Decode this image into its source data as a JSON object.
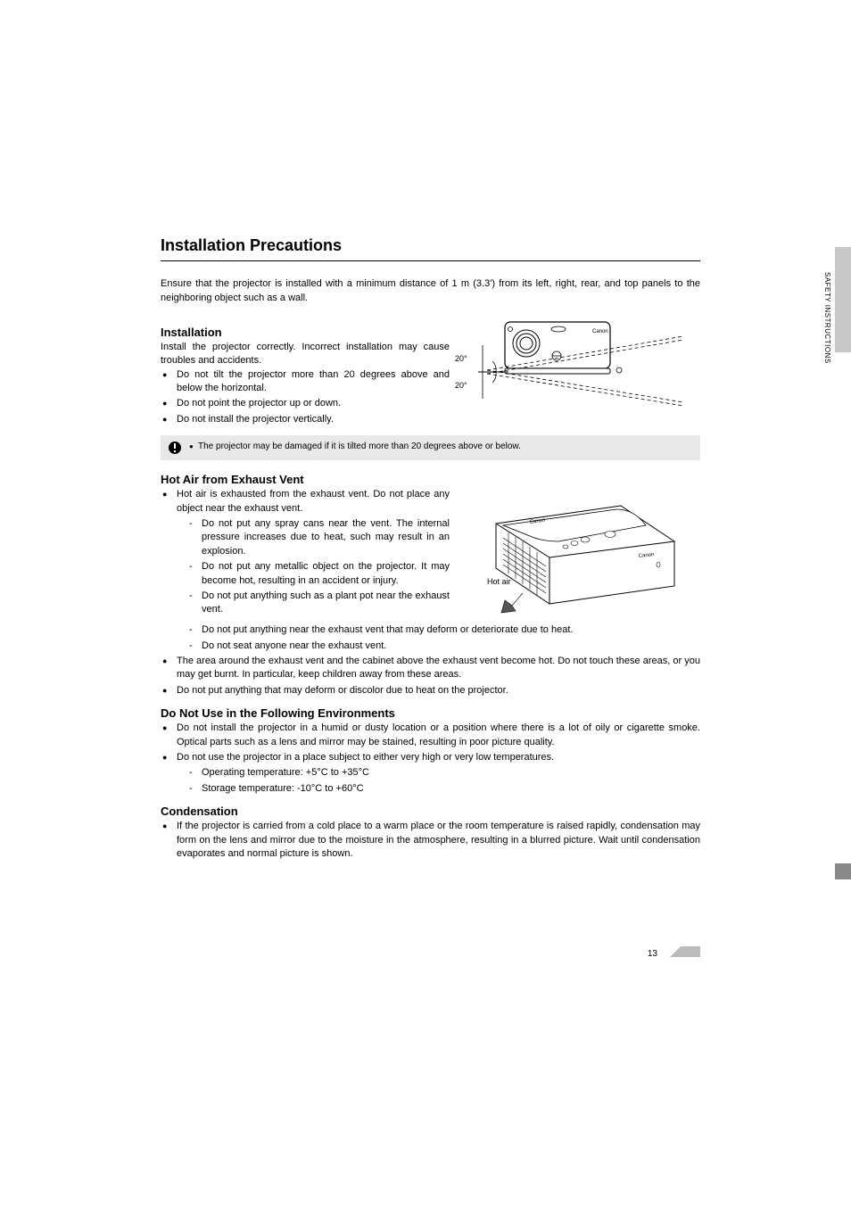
{
  "sideTab": "SAFETY INSTRUCTIONS",
  "mainHeading": "Installation Precautions",
  "intro": "Ensure that the projector is installed with a minimum distance of 1 m (3.3') from its left, right, rear, and top panels to the neighboring object such as a wall.",
  "install": {
    "heading": "Installation",
    "lead": "Install the projector correctly. Incorrect installation may cause troubles and accidents.",
    "bullets": [
      "Do not tilt the projector more than 20 degrees above and below the horizontal.",
      "Do not point the projector up or down.",
      "Do not install the projector vertically."
    ],
    "angleTop": "20°",
    "angleBottom": "20°"
  },
  "note": "The projector may be damaged if it is tilted more than 20 degrees above or below.",
  "hotair": {
    "heading": "Hot Air from Exhaust Vent",
    "label": "Hot air",
    "bullet1": "Hot air is exhausted from the exhaust vent. Do not place any object near the exhaust vent.",
    "sub1": "Do not put any spray cans near the vent. The internal pressure increases due to heat, such may result in an explosion.",
    "sub2": "Do not put any metallic object on the projector. It may become hot, resulting in an accident or injury.",
    "sub3": "Do not put anything such as a plant pot near the exhaust vent.",
    "sub4": "Do not put anything near the exhaust vent that may deform or deteriorate due to heat.",
    "sub5": "Do not seat anyone near the exhaust vent.",
    "bullet2": "The area around the exhaust vent and the cabinet above the exhaust vent become hot. Do not touch these areas, or you may get burnt. In particular, keep children away from these areas.",
    "bullet3": "Do not put anything that may deform or discolor due to heat on the projector."
  },
  "env": {
    "heading": "Do Not Use in the Following Environments",
    "bullet1": "Do not install the projector in a humid or dusty location or a position where there is a lot of oily or cigarette smoke. Optical parts such as a lens and mirror may be stained, resulting in poor picture quality.",
    "bullet2": "Do not use the projector in a place subject to either very high or very low temperatures.",
    "sub1": "Operating temperature: +5°C to +35°C",
    "sub2": "Storage temperature: -10°C to +60°C"
  },
  "cond": {
    "heading": "Condensation",
    "bullet1": "If the projector is carried from a cold place to a warm place or the room temperature is raised rapidly, condensation may form on the lens and mirror due to the moisture in the atmosphere, resulting in a blurred picture. Wait until condensation evaporates and normal picture is shown."
  },
  "pageNum": "13",
  "colors": {
    "tabGray": "#c8c8c8",
    "noteGray": "#e8e8e8",
    "sideSmall": "#888888"
  }
}
